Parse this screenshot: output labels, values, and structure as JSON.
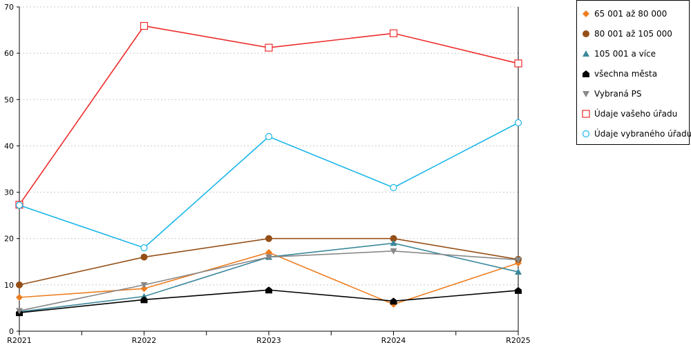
{
  "chart_data": {
    "type": "line",
    "categories": [
      "R2021",
      "R2022",
      "R2023",
      "R2024",
      "R2025"
    ],
    "ylim": [
      0,
      70
    ],
    "yticks": [
      0,
      10,
      20,
      30,
      40,
      50,
      60,
      70
    ],
    "title": "",
    "xlabel": "",
    "ylabel": "",
    "grid": "horizontal dotted",
    "legend_position": "top-right",
    "series": [
      {
        "name": "65 001 až 80 000",
        "color": "#ee7d1e",
        "marker": "diamond",
        "values": [
          7.3,
          9.2,
          17,
          5.8,
          14.7
        ]
      },
      {
        "name": "80 001 až 105 000",
        "color": "#954f16",
        "marker": "circle-filled",
        "values": [
          10,
          16,
          20,
          20,
          15.5
        ]
      },
      {
        "name": "105 001 a více",
        "color": "#3a879c",
        "marker": "triangle-up",
        "values": [
          4.2,
          7.5,
          16,
          19,
          12.8
        ]
      },
      {
        "name": "všechna města",
        "color": "#000000",
        "marker": "pentagon",
        "values": [
          4,
          6.8,
          8.9,
          6.5,
          8.8
        ]
      },
      {
        "name": "Vybraná PS",
        "color": "#888888",
        "marker": "triangle-down",
        "values": [
          4.4,
          10,
          16,
          17.3,
          15.4
        ]
      },
      {
        "name": "Údaje vašeho úřadu",
        "color": "#ee2a2a",
        "marker": "square-open",
        "values": [
          27.3,
          65.9,
          61.2,
          64.3,
          57.8
        ]
      },
      {
        "name": "Údaje vybraného úřadu",
        "color": "#1ab6e8",
        "marker": "circle-open",
        "values": [
          27.2,
          18,
          42,
          31,
          45
        ]
      }
    ]
  }
}
